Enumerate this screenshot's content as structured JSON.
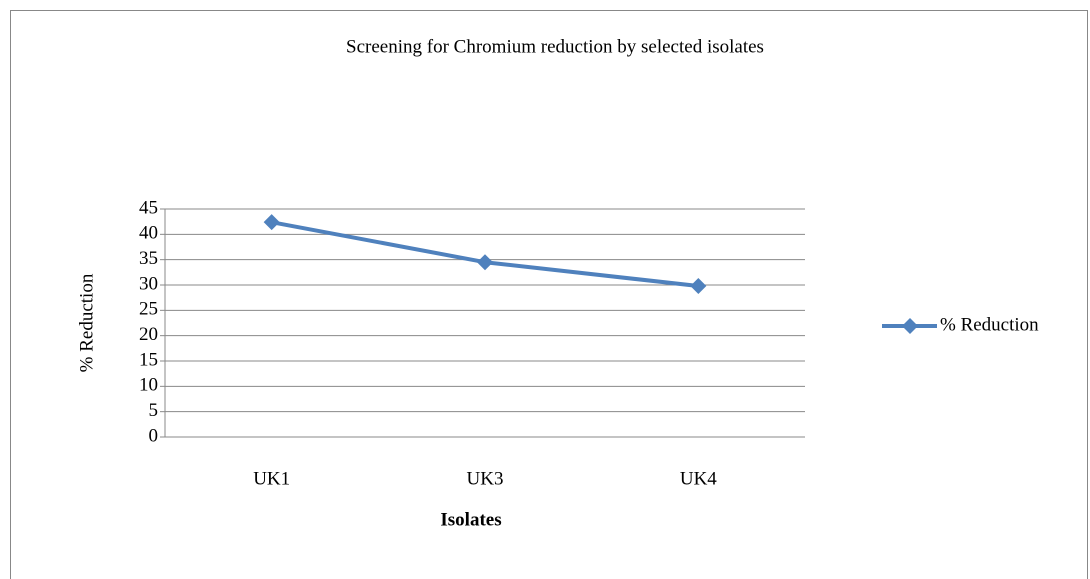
{
  "chart_data": {
    "type": "line",
    "title": "Screening for Chromium reduction by selected isolates",
    "x_label": "Isolates",
    "y_label": "% Reduction",
    "categories": [
      "UK1",
      "UK3",
      "UK4"
    ],
    "series": [
      {
        "name": "% Reduction",
        "color": "#4f81bd",
        "values": [
          42.4,
          34.5,
          29.8
        ]
      }
    ],
    "ylim": [
      0,
      45
    ],
    "yticks": [
      0,
      5,
      10,
      15,
      20,
      25,
      30,
      35,
      40,
      45
    ],
    "grid": true,
    "legend": "right"
  }
}
